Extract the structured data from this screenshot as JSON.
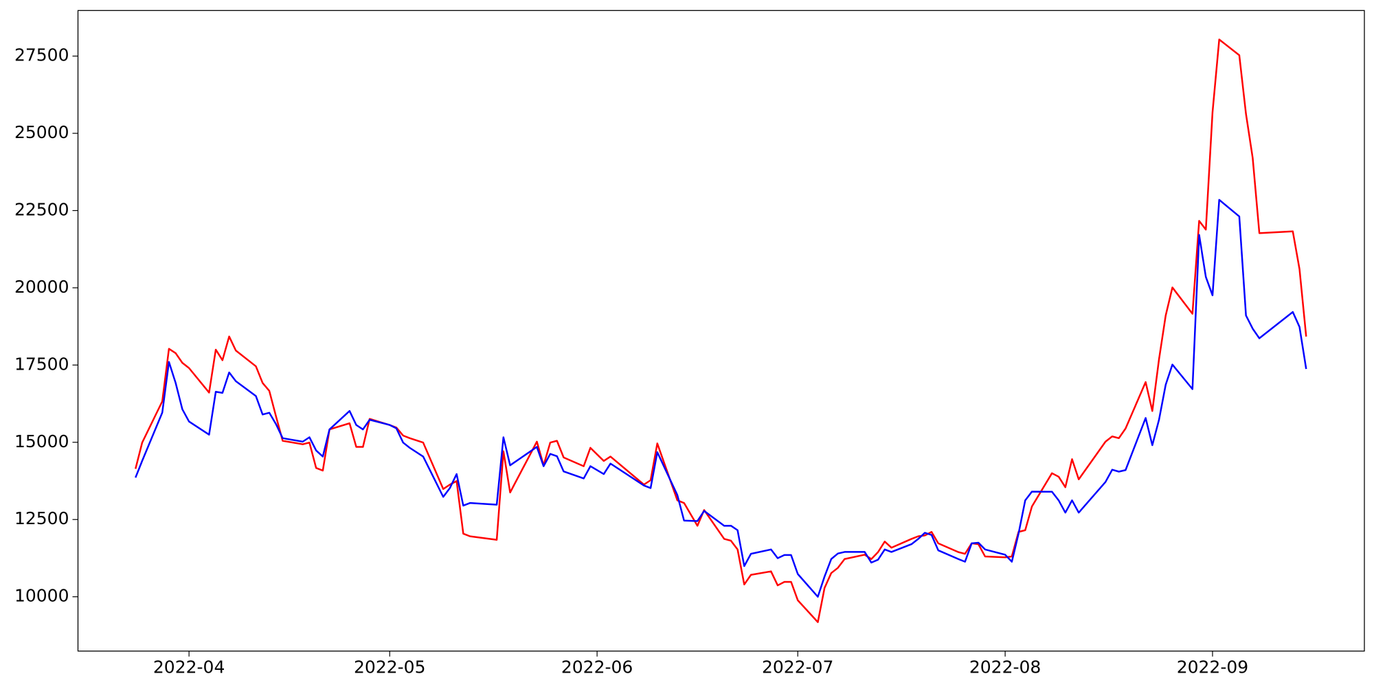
{
  "chart_data": {
    "type": "line",
    "x": [
      19075,
      19076,
      19079,
      19080,
      19081,
      19082,
      19083,
      19086,
      19087,
      19088,
      19089,
      19090,
      19093,
      19094,
      19095,
      19096,
      19097,
      19100,
      19101,
      19102,
      19103,
      19104,
      19107,
      19108,
      19109,
      19110,
      19113,
      19114,
      19115,
      19116,
      19118,
      19121,
      19122,
      19123,
      19124,
      19125,
      19129,
      19130,
      19131,
      19135,
      19136,
      19137,
      19138,
      19139,
      19142,
      19143,
      19145,
      19146,
      19151,
      19152,
      19153,
      19156,
      19157,
      19159,
      19160,
      19163,
      19164,
      19165,
      19166,
      19167,
      19170,
      19171,
      19172,
      19173,
      19174,
      19177,
      19178,
      19179,
      19180,
      19181,
      19184,
      19185,
      19186,
      19187,
      19188,
      19191,
      19192,
      19193,
      19194,
      19195,
      19198,
      19199,
      19200,
      19201,
      19202,
      19205,
      19206,
      19207,
      19208,
      19209,
      19212,
      19213,
      19214,
      19215,
      19216,
      19220,
      19221,
      19222,
      19223,
      19226,
      19227,
      19228,
      19229,
      19230,
      19233,
      19234,
      19235,
      19236,
      19237,
      19240,
      19241,
      19242,
      19243,
      19248,
      19249,
      19250
    ],
    "series": [
      {
        "color": "#ff0000",
        "values": [
          14141,
          14991,
          16324,
          18026,
          17884,
          17572,
          17402,
          16608,
          17998,
          17657,
          18423,
          17969,
          17459,
          16920,
          16665,
          15842,
          15048,
          14935,
          14991,
          14169,
          14084,
          15417,
          15615,
          14850,
          14850,
          15757,
          15559,
          15474,
          15218,
          15133,
          14991,
          13488,
          13630,
          13744,
          12042,
          11957,
          11843,
          14708,
          13375,
          15020,
          14254,
          14991,
          15048,
          14509,
          14226,
          14821,
          14396,
          14538,
          13630,
          13772,
          14963,
          13120,
          13035,
          12297,
          12808,
          11872,
          11815,
          11531,
          10397,
          10709,
          10822,
          10369,
          10482,
          10482,
          9887,
          9178,
          10284,
          10766,
          10936,
          11220,
          11361,
          11220,
          11446,
          11787,
          11588,
          11872,
          11957,
          11985,
          12099,
          11730,
          11446,
          11390,
          11730,
          11702,
          11305,
          11276,
          11305,
          12099,
          12155,
          12921,
          13999,
          13885,
          13545,
          14453,
          13800,
          15020,
          15190,
          15133,
          15445,
          16948,
          16013,
          17686,
          19104,
          20011,
          19160,
          22167,
          21883,
          25683,
          28037,
          27527,
          25627,
          24209,
          21770,
          21826,
          20607,
          18423
        ]
      },
      {
        "color": "#0000ff",
        "values": [
          13857,
          14400,
          15960,
          17600,
          16920,
          16069,
          15672,
          15247,
          16636,
          16600,
          17260,
          16977,
          16495,
          15899,
          15956,
          15587,
          15133,
          15020,
          15162,
          14736,
          14538,
          15417,
          16013,
          15559,
          15417,
          15729,
          15560,
          15450,
          14991,
          14820,
          14538,
          13233,
          13520,
          13971,
          12950,
          13035,
          12980,
          15162,
          14254,
          14850,
          14226,
          14623,
          14550,
          14056,
          13829,
          14226,
          13971,
          14311,
          13601,
          13517,
          14680,
          13290,
          12467,
          12450,
          12779,
          12297,
          12300,
          12155,
          10993,
          11390,
          11531,
          11248,
          11350,
          11350,
          10737,
          10000,
          10652,
          11220,
          11400,
          11450,
          11450,
          11106,
          11200,
          11531,
          11450,
          11702,
          11870,
          12070,
          12000,
          11503,
          11220,
          11134,
          11730,
          11750,
          11531,
          11361,
          11134,
          12042,
          13120,
          13403,
          13400,
          13120,
          12723,
          13120,
          12723,
          13715,
          14112,
          14050,
          14100,
          15786,
          14906,
          15729,
          16863,
          17515,
          16721,
          21713,
          20352,
          19756,
          22848,
          22309,
          19104,
          18678,
          18366,
          19217,
          18735,
          17374
        ]
      }
    ],
    "xlim": [
      19066.4,
      19258.7
    ],
    "xticks": [
      {
        "value": 19083,
        "label": "2022-04"
      },
      {
        "value": 19113,
        "label": "2022-05"
      },
      {
        "value": 19144,
        "label": "2022-06"
      },
      {
        "value": 19174,
        "label": "2022-07"
      },
      {
        "value": 19205,
        "label": "2022-08"
      },
      {
        "value": 19236,
        "label": "2022-09"
      }
    ],
    "ylim": [
      8242,
      28975
    ],
    "yticks": [
      10000,
      12500,
      15000,
      17500,
      20000,
      22500,
      25000,
      27500
    ]
  }
}
